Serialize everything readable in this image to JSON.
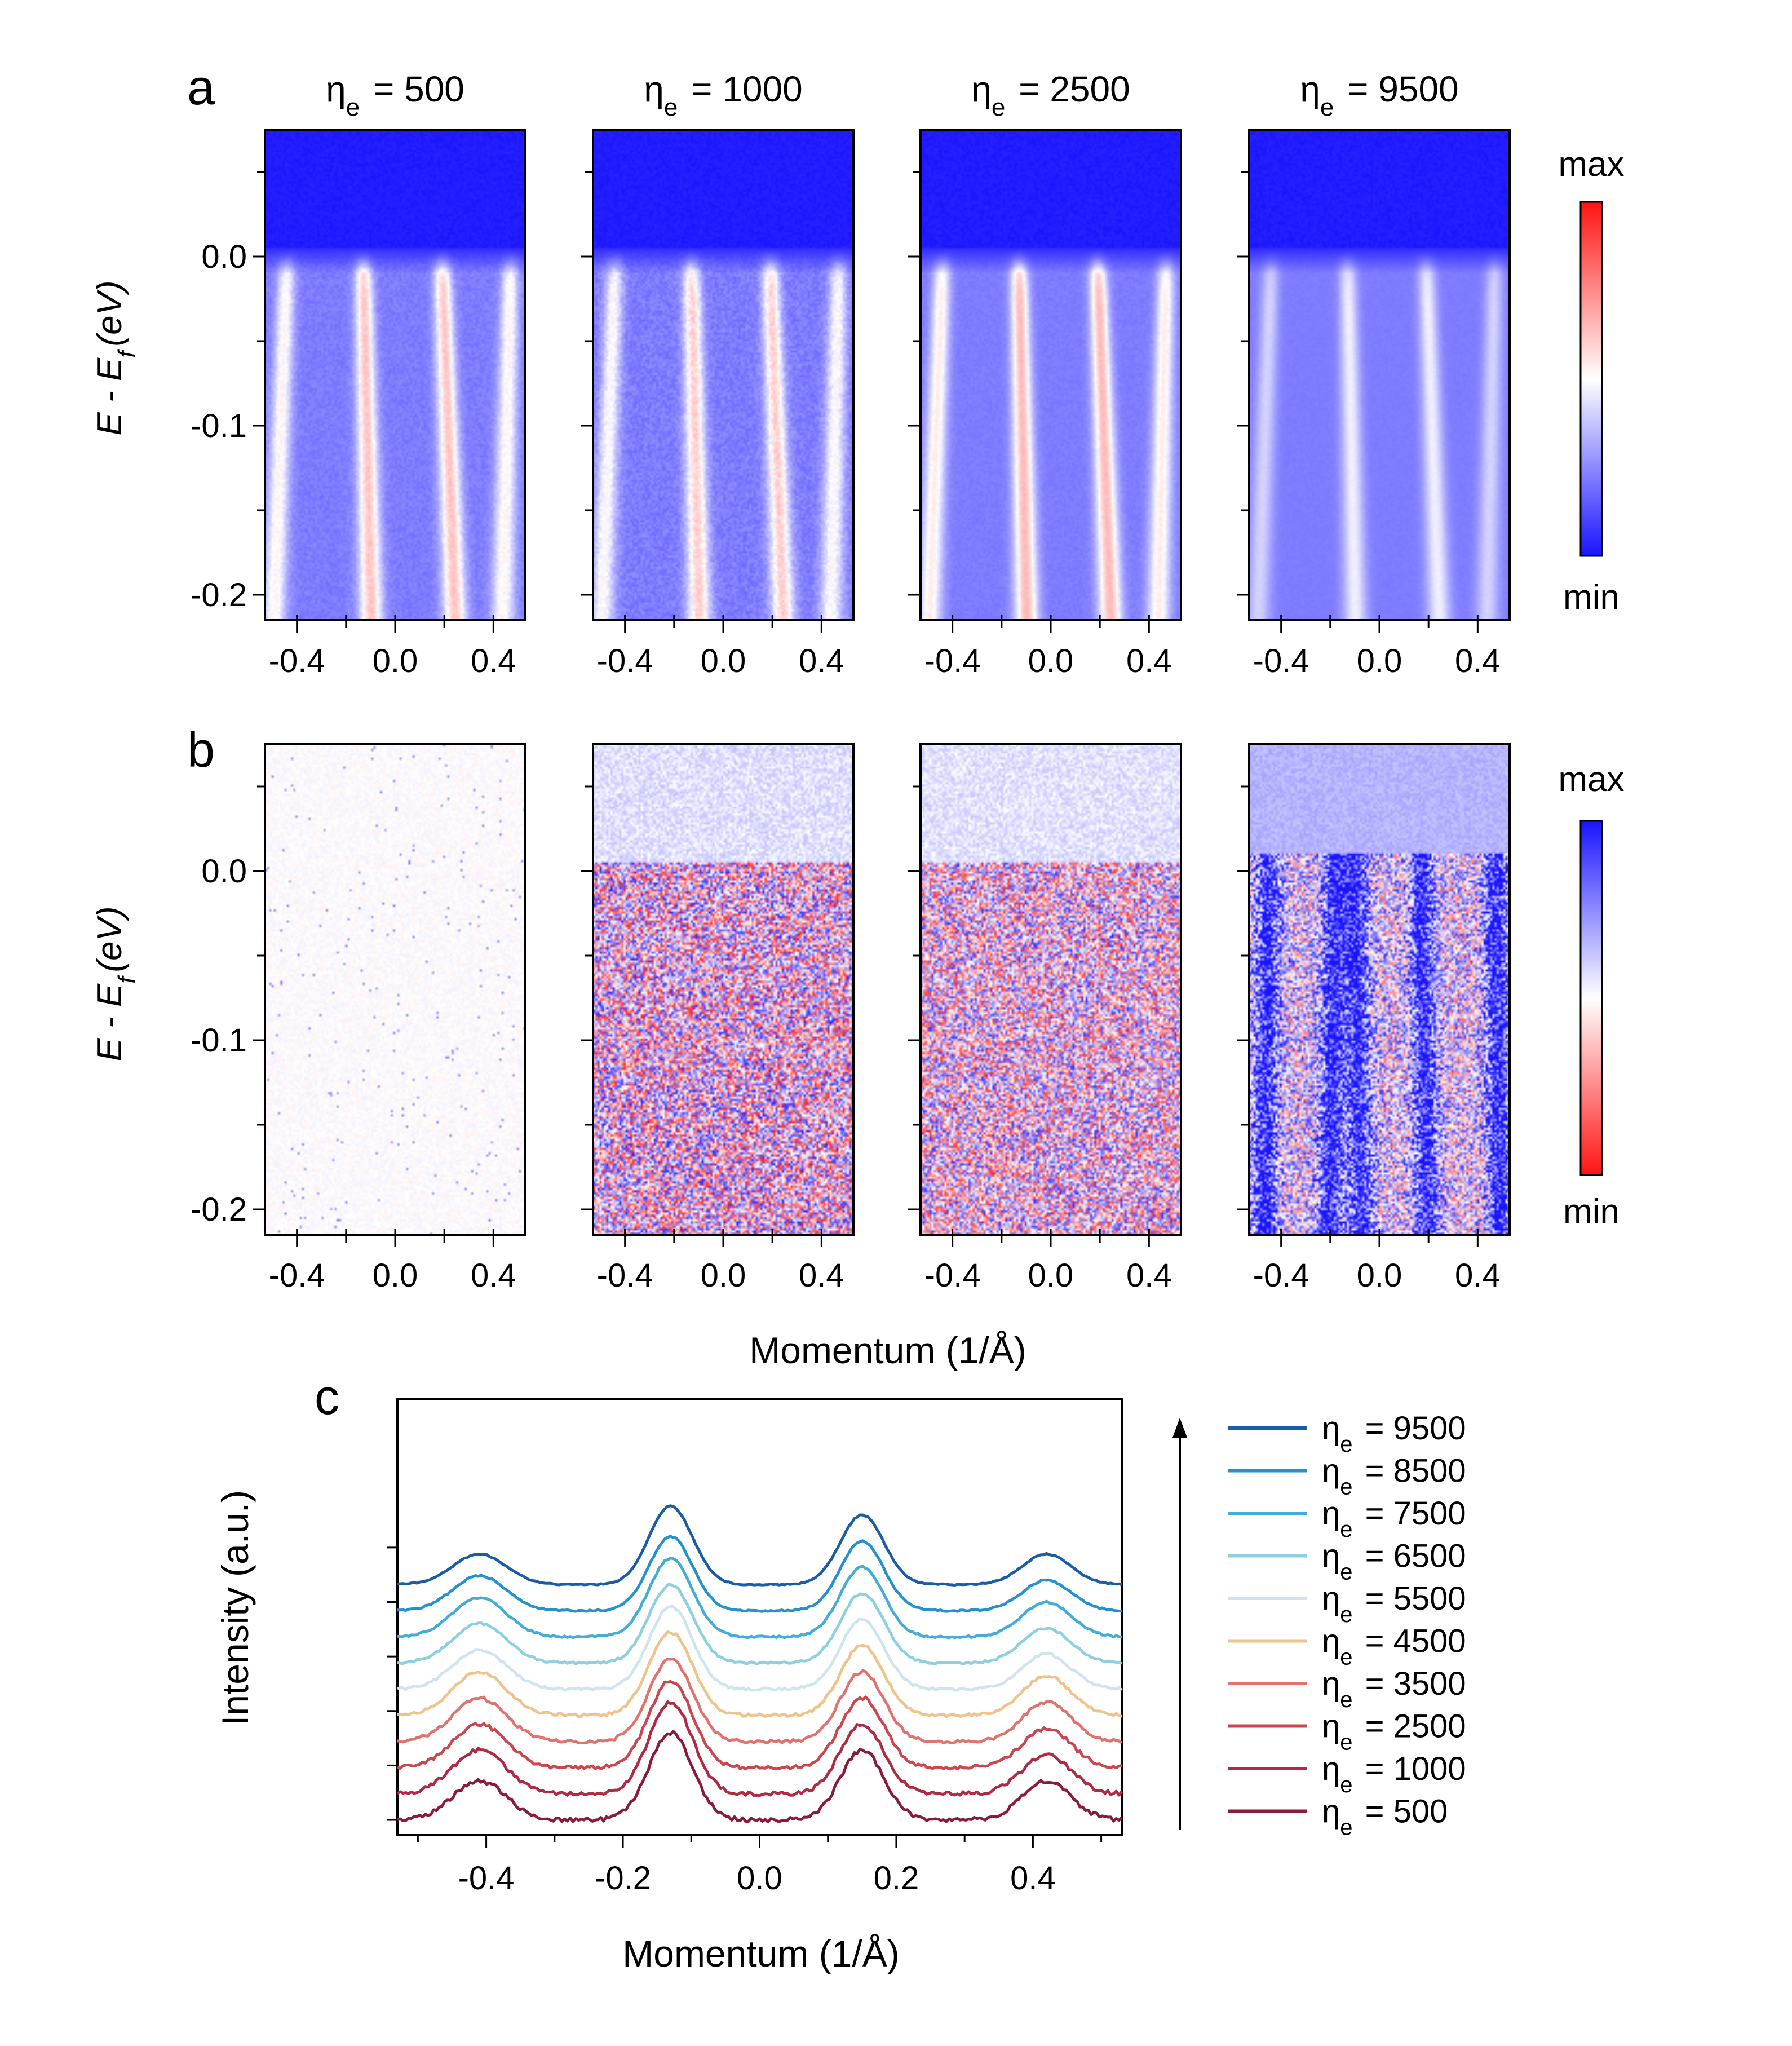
{
  "figure": {
    "panel_labels": {
      "a": "a",
      "b": "b",
      "c": "c"
    },
    "eta_prefix": "η",
    "eta_sub": "e"
  },
  "chart_data": [
    {
      "id": "panel-a",
      "type": "heatmap",
      "title": "",
      "xlabel": "",
      "ylabel": "E - Ef (eV)",
      "ylabel_parts": {
        "main": "E - E",
        "sub": "f",
        "unit": "(eV)"
      },
      "xlim": [
        -0.53,
        0.53
      ],
      "ylim": [
        -0.215,
        0.075
      ],
      "xticks": [
        -0.4,
        0.0,
        0.4
      ],
      "xtick_labels": [
        "-0.4",
        "0.0",
        "0.4"
      ],
      "yticks": [
        0.0,
        -0.1,
        -0.2
      ],
      "ytick_labels": [
        "0.0",
        "-0.1",
        "-0.2"
      ],
      "band_positions_k": [
        -0.44,
        -0.13,
        0.19,
        0.47
      ],
      "colorbar": {
        "top": "max",
        "bottom": "min",
        "colors": [
          "#2a00ff",
          "#ffffff",
          "#ff0000"
        ]
      },
      "subplots": [
        {
          "eta": "500",
          "title": "ηe = 500",
          "noise": 0.35,
          "band_strength": 0.9
        },
        {
          "eta": "1000",
          "title": "ηe = 1000",
          "noise": 0.5,
          "band_strength": 0.85
        },
        {
          "eta": "2500",
          "title": "ηe = 2500",
          "noise": 0.2,
          "band_strength": 0.95
        },
        {
          "eta": "9500",
          "title": "ηe = 9500",
          "noise": 0.1,
          "band_strength": 0.55
        }
      ]
    },
    {
      "id": "panel-b",
      "type": "heatmap",
      "title": "",
      "xlabel": "Momentum (1/Å)",
      "ylabel": "E - Ef (eV)",
      "ylabel_parts": {
        "main": "E - E",
        "sub": "f",
        "unit": "(eV)"
      },
      "xlim": [
        -0.53,
        0.53
      ],
      "ylim": [
        -0.215,
        0.075
      ],
      "xticks": [
        -0.4,
        0.0,
        0.4
      ],
      "xtick_labels": [
        "-0.4",
        "0.0",
        "0.4"
      ],
      "yticks": [
        0.0,
        -0.1,
        -0.2
      ],
      "ytick_labels": [
        "0.0",
        "-0.1",
        "-0.2"
      ],
      "colorbar": {
        "top": "max",
        "bottom": "min",
        "colors": [
          "#2a00ff",
          "#ffffff",
          "#ff0000"
        ]
      },
      "subplots": [
        {
          "eta": "500",
          "residual_level": 0.05
        },
        {
          "eta": "1000",
          "residual_level": 0.75
        },
        {
          "eta": "2500",
          "residual_level": 0.7
        },
        {
          "eta": "9500",
          "residual_level": 1.0
        }
      ]
    },
    {
      "id": "panel-c",
      "type": "line",
      "title": "",
      "xlabel": "Momentum (1/Å)",
      "ylabel": "Intensity (a.u.)",
      "xlim": [
        -0.53,
        0.53
      ],
      "xticks": [
        -0.4,
        -0.2,
        0.0,
        0.2,
        0.4
      ],
      "xtick_labels": [
        "-0.4",
        "-0.2",
        "0.0",
        "0.2",
        "0.4"
      ],
      "ylim": [
        0,
        1
      ],
      "y_tick_count": 6,
      "legend_position": "right",
      "peak_centers": [
        -0.41,
        -0.13,
        0.15,
        0.42
      ],
      "series": [
        {
          "name": "ηe = 500",
          "eta": "500",
          "color": "#8c1a3b",
          "baseline": 0.035,
          "amp": [
            0.09,
            0.2,
            0.16,
            0.09
          ]
        },
        {
          "name": "ηe = 1000",
          "eta": "1000",
          "color": "#b02a42",
          "baseline": 0.095,
          "amp": [
            0.1,
            0.21,
            0.16,
            0.09
          ]
        },
        {
          "name": "ηe = 2500",
          "eta": "2500",
          "color": "#cc454f",
          "baseline": 0.155,
          "amp": [
            0.1,
            0.2,
            0.16,
            0.09
          ]
        },
        {
          "name": "ηe = 3500",
          "eta": "3500",
          "color": "#e0736b",
          "baseline": 0.215,
          "amp": [
            0.1,
            0.19,
            0.16,
            0.09
          ]
        },
        {
          "name": "ηe = 4500",
          "eta": "4500",
          "color": "#eec38c",
          "baseline": 0.275,
          "amp": [
            0.1,
            0.19,
            0.16,
            0.09
          ]
        },
        {
          "name": "ηe = 5500",
          "eta": "5500",
          "color": "#cfe5ec",
          "baseline": 0.335,
          "amp": [
            0.09,
            0.19,
            0.16,
            0.08
          ]
        },
        {
          "name": "ηe = 6500",
          "eta": "6500",
          "color": "#8ecfe0",
          "baseline": 0.395,
          "amp": [
            0.09,
            0.18,
            0.16,
            0.08
          ]
        },
        {
          "name": "ηe = 7500",
          "eta": "7500",
          "color": "#43add8",
          "baseline": 0.455,
          "amp": [
            0.09,
            0.18,
            0.16,
            0.08
          ]
        },
        {
          "name": "ηe = 8500",
          "eta": "8500",
          "color": "#2592cf",
          "baseline": 0.515,
          "amp": [
            0.08,
            0.17,
            0.16,
            0.07
          ]
        },
        {
          "name": "ηe = 9500",
          "eta": "9500",
          "color": "#1a5da6",
          "baseline": 0.575,
          "amp": [
            0.07,
            0.18,
            0.16,
            0.07
          ]
        }
      ]
    }
  ]
}
